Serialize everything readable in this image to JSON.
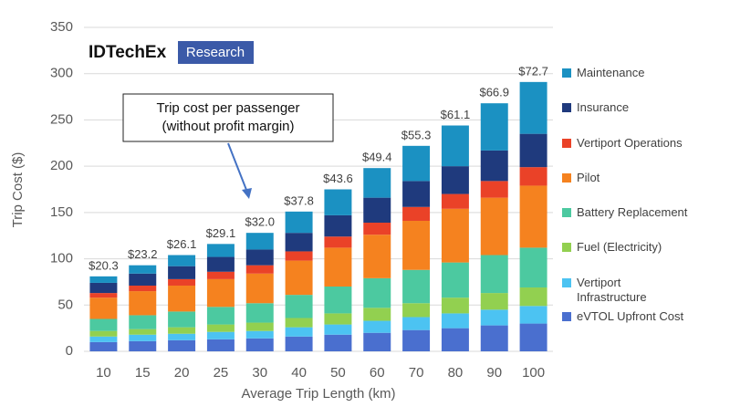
{
  "chart_data": {
    "type": "stacked_bar",
    "ylabel": "Trip Cost ($)",
    "xlabel": "Average Trip Length (km)",
    "logo": {
      "name": "IDTechEx",
      "badge": "Research"
    },
    "callout": {
      "lines": [
        "Trip cost per passenger",
        "(without profit margin)"
      ]
    },
    "categories": [
      "10",
      "15",
      "20",
      "25",
      "30",
      "40",
      "50",
      "60",
      "70",
      "80",
      "90",
      "100"
    ],
    "series": [
      {
        "name": "eVTOL Upfront Cost",
        "color": "#4a6fcf",
        "values": [
          10,
          11,
          12,
          13,
          14,
          16,
          18,
          20,
          23,
          25,
          28,
          30
        ]
      },
      {
        "name": "Vertiport Infrastructure",
        "color": "#4cc3f2",
        "values": [
          6,
          7,
          7,
          8,
          8,
          10,
          11,
          13,
          14,
          16,
          17,
          19
        ]
      },
      {
        "name": "Fuel (Electricity)",
        "color": "#92d050",
        "values": [
          6,
          6,
          7,
          8,
          9,
          10,
          12,
          14,
          15,
          17,
          18,
          20
        ]
      },
      {
        "name": "Battery Replacement",
        "color": "#4cc9a0",
        "values": [
          13,
          15,
          17,
          19,
          21,
          25,
          29,
          32,
          36,
          38,
          41,
          43
        ]
      },
      {
        "name": "Pilot",
        "color": "#f5821f",
        "values": [
          23,
          26,
          28,
          30,
          32,
          37,
          42,
          47,
          53,
          58,
          62,
          67
        ]
      },
      {
        "name": "Vertiport Operations",
        "color": "#ea4228",
        "values": [
          5,
          6,
          7,
          8,
          9,
          10,
          12,
          13,
          15,
          16,
          18,
          20
        ]
      },
      {
        "name": "Insurance",
        "color": "#1f3a7d",
        "values": [
          11,
          13,
          14,
          16,
          17,
          20,
          23,
          27,
          28,
          30,
          33,
          36
        ]
      },
      {
        "name": "Maintenance",
        "color": "#1b91c2",
        "values": [
          7,
          9,
          12,
          14,
          18,
          23,
          28,
          32,
          38,
          44,
          51,
          56
        ]
      }
    ],
    "bar_labels": {
      "values": [
        20.3,
        23.2,
        26.1,
        29.1,
        32.0,
        37.8,
        43.6,
        49.4,
        55.3,
        61.1,
        66.9,
        72.7
      ],
      "value_labels": [
        "$20.3",
        "$23.2",
        "$26.1",
        "$29.1",
        "$32.0",
        "$37.8",
        "$43.6",
        "$49.4",
        "$55.3",
        "$61.1",
        "$66.9",
        "$72.7"
      ]
    },
    "ylim": [
      0,
      350
    ],
    "yticks": [
      0,
      50,
      100,
      150,
      200,
      250,
      300,
      350
    ],
    "grid": true
  }
}
